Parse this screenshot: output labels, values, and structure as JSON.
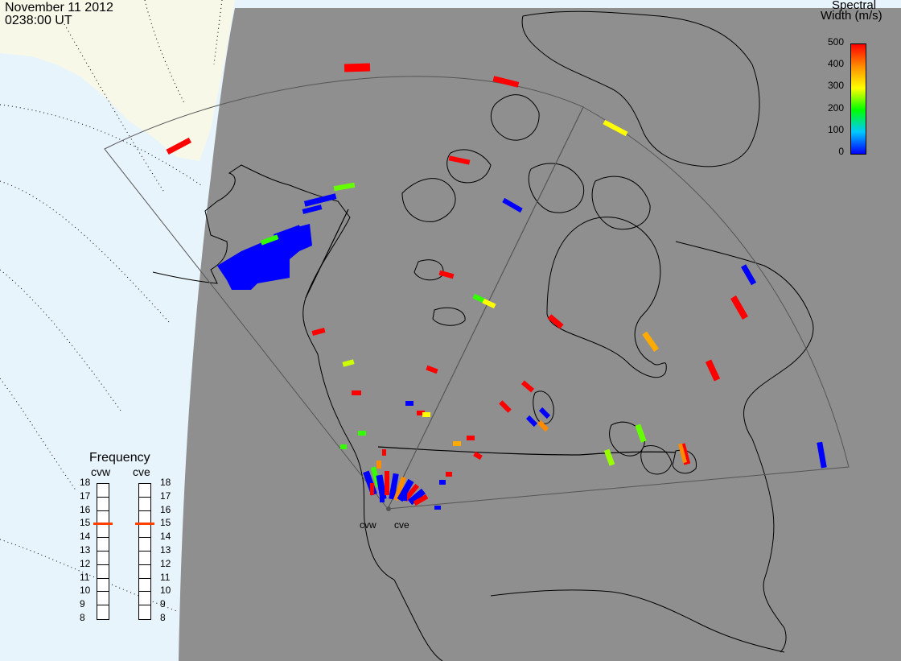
{
  "header": {
    "date": "November 11 2012",
    "time": "0238:00 UT"
  },
  "colorbar": {
    "title_line1": "Spectral",
    "title_line2": "Width (m/s)",
    "ticks": [
      "500",
      "400",
      "300",
      "200",
      "100",
      "0"
    ],
    "colors": [
      "#0000ff",
      "#00c8ff",
      "#00ff00",
      "#ffff00",
      "#ff8c00",
      "#ff0000"
    ]
  },
  "frequency_panel": {
    "title": "Frequency",
    "radars": [
      {
        "name": "cvw",
        "selected_mhz": 15
      },
      {
        "name": "cve",
        "selected_mhz": 15
      }
    ],
    "scale_labels": [
      "18",
      "17",
      "16",
      "15",
      "14",
      "13",
      "12",
      "11",
      "10",
      "9",
      "8"
    ],
    "indicator_color": "#ff4000"
  },
  "sites": [
    {
      "name": "cvw"
    },
    {
      "name": "cve"
    }
  ],
  "colors": {
    "ocean": "#e8f4fc",
    "land_day": "#f8f8e8",
    "night_shade": "#8f8f8f",
    "coast": "#000000"
  }
}
